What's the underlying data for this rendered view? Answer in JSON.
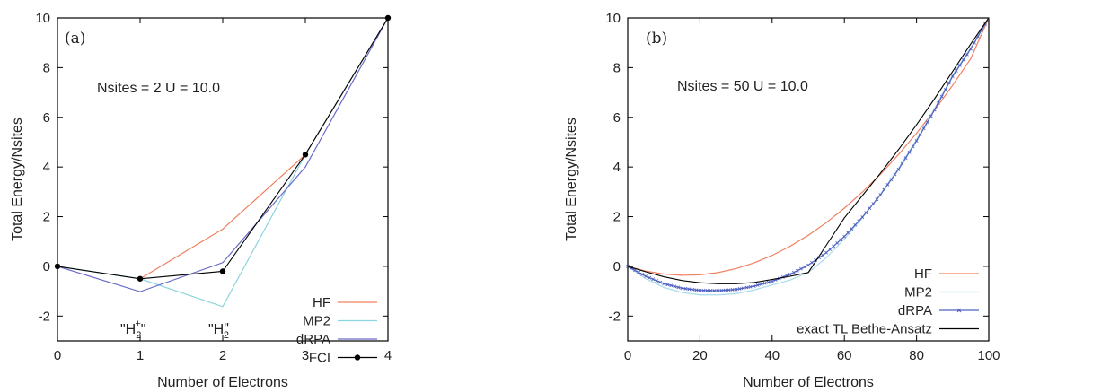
{
  "chart_data": [
    {
      "type": "line",
      "panel_label": "(a)",
      "annotation": "Nsites = 2 U = 10.0",
      "xlabel": "Number of Electrons",
      "ylabel": "Total Energy/Nsites",
      "xlim": [
        0,
        4
      ],
      "ylim": [
        -3,
        10
      ],
      "xticks": [
        "0",
        "1",
        "2",
        "3",
        "4"
      ],
      "yticks": [
        "-2",
        "0",
        "2",
        "4",
        "6",
        "8",
        "10"
      ],
      "point_labels": [
        {
          "base": "\"H",
          "sub": "2",
          "sup": "+",
          "close": "\"",
          "x": 1,
          "y": -2.5
        },
        {
          "base": "\"H",
          "sub": "",
          "sup": "\"",
          "close": "",
          "x": 2,
          "y": -2.5,
          "tail_sub": "2"
        }
      ],
      "legend_position": "bottom-right",
      "series": [
        {
          "name": "HF",
          "color": "#f08060",
          "marker": "none",
          "x": [
            1,
            2,
            3,
            4
          ],
          "y": [
            -0.5,
            1.5,
            4.5,
            10
          ]
        },
        {
          "name": "MP2",
          "color": "#8cd4e0",
          "marker": "none",
          "x": [
            0,
            1,
            2,
            3,
            4
          ],
          "y": [
            0,
            -0.5,
            -1.62,
            4.5,
            10
          ]
        },
        {
          "name": "dRPA",
          "color": "#6a6ac8",
          "marker": "none",
          "x": [
            0,
            1,
            2,
            3,
            4
          ],
          "y": [
            0,
            -1.02,
            0.15,
            4.0,
            10
          ]
        },
        {
          "name": "FCI",
          "color": "#000000",
          "marker": "dot",
          "x": [
            0,
            1,
            2,
            3,
            4
          ],
          "y": [
            0,
            -0.5,
            -0.2,
            4.5,
            10
          ]
        }
      ]
    },
    {
      "type": "line",
      "panel_label": "(b)",
      "annotation": "Nsites = 50  U = 10.0",
      "xlabel": "Number of Electrons",
      "ylabel": "Total Energy/Nsites",
      "xlim": [
        0,
        100
      ],
      "ylim": [
        -3,
        10
      ],
      "xticks": [
        "0",
        "20",
        "40",
        "60",
        "80",
        "100"
      ],
      "yticks": [
        "-2",
        "0",
        "2",
        "4",
        "6",
        "8",
        "10"
      ],
      "legend_position": "bottom-right",
      "series": [
        {
          "name": "HF",
          "color": "#f08060",
          "marker": "none",
          "x": [
            0,
            5,
            10,
            15,
            20,
            25,
            30,
            35,
            40,
            45,
            50,
            55,
            60,
            65,
            70,
            75,
            80,
            85,
            90,
            95,
            100
          ],
          "y": [
            0,
            -0.19,
            -0.31,
            -0.36,
            -0.34,
            -0.25,
            -0.09,
            0.14,
            0.44,
            0.81,
            1.25,
            1.76,
            2.34,
            2.99,
            3.71,
            4.5,
            5.36,
            6.29,
            7.29,
            8.36,
            10
          ]
        },
        {
          "name": "MP2",
          "color": "#a8dbe8",
          "marker": "none",
          "x": [
            0,
            5,
            10,
            15,
            20,
            25,
            30,
            35,
            40,
            45,
            50,
            55,
            60,
            65,
            70,
            75,
            80,
            85,
            90,
            95,
            100
          ],
          "y": [
            0,
            -0.5,
            -0.85,
            -1.05,
            -1.15,
            -1.15,
            -1.1,
            -0.95,
            -0.75,
            -0.55,
            -0.25,
            0.35,
            1.1,
            1.95,
            2.9,
            3.95,
            5.1,
            6.35,
            7.7,
            8.8,
            10
          ]
        },
        {
          "name": "dRPA",
          "color": "#5060c0",
          "marker": "cross",
          "x": [
            0,
            5,
            10,
            15,
            20,
            25,
            30,
            35,
            40,
            45,
            50,
            55,
            60,
            65,
            70,
            75,
            80,
            85,
            90,
            95,
            100
          ],
          "y": [
            0,
            -0.4,
            -0.7,
            -0.88,
            -0.97,
            -0.98,
            -0.93,
            -0.8,
            -0.6,
            -0.32,
            0.05,
            0.55,
            1.2,
            1.98,
            2.88,
            3.9,
            5.05,
            6.3,
            7.65,
            8.75,
            10
          ]
        },
        {
          "name": "exact TL Bethe-Ansatz",
          "color": "#000000",
          "marker": "none",
          "x": [
            0,
            5,
            10,
            15,
            20,
            25,
            30,
            35,
            40,
            45,
            50,
            55,
            60,
            65,
            70,
            75,
            80,
            85,
            90,
            95,
            100
          ],
          "y": [
            0,
            -0.22,
            -0.42,
            -0.57,
            -0.66,
            -0.7,
            -0.7,
            -0.65,
            -0.53,
            -0.4,
            -0.25,
            0.85,
            1.95,
            2.85,
            3.75,
            4.7,
            5.7,
            6.75,
            7.85,
            8.95,
            10
          ]
        }
      ]
    }
  ]
}
